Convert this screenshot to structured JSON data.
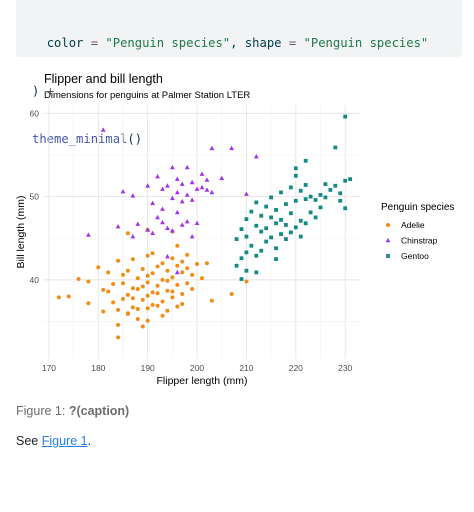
{
  "code": {
    "line1": {
      "indent": "  ",
      "a": "color",
      "b": " = ",
      "c": "\"Penguin species\"",
      "d": ", ",
      "e": "shape",
      "f": " = ",
      "g": "\"Penguin species\""
    },
    "line2": {
      "a": ") ",
      "b": "+"
    },
    "line3": {
      "fn": "theme_minimal",
      "rest": "()"
    }
  },
  "chart_data": {
    "type": "scatter",
    "title": "Flipper and bill length",
    "subtitle": "Dimensions for penguins at Palmer Station LTER",
    "xlabel": "Flipper length (mm)",
    "ylabel": "Bill length (mm)",
    "xlim": [
      169,
      233
    ],
    "ylim": [
      30.5,
      61
    ],
    "x_ticks": [
      170,
      180,
      190,
      200,
      210,
      220,
      230
    ],
    "y_ticks": [
      40,
      50,
      60
    ],
    "grid": true,
    "legend_title": "Penguin species",
    "legend_position": "right",
    "series": [
      {
        "name": "Adelie",
        "color": "#f28e17",
        "shape": "circle",
        "points": [
          [
            172,
            37.9
          ],
          [
            174,
            38
          ],
          [
            176,
            40.1
          ],
          [
            178,
            39.8
          ],
          [
            178,
            37.2
          ],
          [
            180,
            41.5
          ],
          [
            181,
            38.8
          ],
          [
            181,
            36.2
          ],
          [
            182,
            38.6
          ],
          [
            182,
            40.9
          ],
          [
            183,
            37.3
          ],
          [
            183,
            39.5
          ],
          [
            184,
            36.4
          ],
          [
            184,
            42.3
          ],
          [
            184,
            34.6
          ],
          [
            185,
            39.6
          ],
          [
            185,
            37.7
          ],
          [
            185,
            40.6
          ],
          [
            186,
            36
          ],
          [
            186,
            38.2
          ],
          [
            186,
            41.1
          ],
          [
            186,
            35.9
          ],
          [
            187,
            39
          ],
          [
            187,
            36.7
          ],
          [
            187,
            37.8
          ],
          [
            187,
            42.5
          ],
          [
            188,
            38.9
          ],
          [
            188,
            40.2
          ],
          [
            188,
            35.3
          ],
          [
            188,
            36.5
          ],
          [
            189,
            39.2
          ],
          [
            189,
            41.3
          ],
          [
            189,
            37.6
          ],
          [
            189,
            34.4
          ],
          [
            190,
            38.1
          ],
          [
            190,
            40.5
          ],
          [
            190,
            36.6
          ],
          [
            190,
            39.7
          ],
          [
            190,
            42.9
          ],
          [
            190,
            35.1
          ],
          [
            191,
            38.5
          ],
          [
            191,
            40.8
          ],
          [
            191,
            37
          ],
          [
            191,
            43.2
          ],
          [
            192,
            39.3
          ],
          [
            192,
            36.9
          ],
          [
            192,
            41.6
          ],
          [
            192,
            38.4
          ],
          [
            193,
            40
          ],
          [
            193,
            37.4
          ],
          [
            193,
            42
          ],
          [
            193,
            35.7
          ],
          [
            194,
            38.7
          ],
          [
            194,
            41.1
          ],
          [
            194,
            36.3
          ],
          [
            194,
            39.9
          ],
          [
            195,
            40.3
          ],
          [
            195,
            37.9
          ],
          [
            195,
            42.6
          ],
          [
            195,
            38.6
          ],
          [
            196,
            39.4
          ],
          [
            196,
            41.7
          ],
          [
            196,
            36.8
          ],
          [
            196,
            44.1
          ],
          [
            197,
            40.9
          ],
          [
            197,
            38.3
          ],
          [
            197,
            42.2
          ],
          [
            197,
            37.1
          ],
          [
            198,
            39.6
          ],
          [
            198,
            41.4
          ],
          [
            198,
            43
          ],
          [
            199,
            40.6
          ],
          [
            199,
            38.9
          ],
          [
            200,
            41.9
          ],
          [
            201,
            40.2
          ],
          [
            202,
            42
          ],
          [
            203,
            37.5
          ],
          [
            207,
            38.3
          ],
          [
            210,
            39.8
          ],
          [
            184,
            33.1
          ],
          [
            186,
            45.6
          ],
          [
            190,
            46
          ],
          [
            195,
            45.8
          ]
        ]
      },
      {
        "name": "Chinstrap",
        "color": "#a434e9",
        "shape": "triangle",
        "points": [
          [
            181,
            58
          ],
          [
            184,
            46.4
          ],
          [
            187,
            45.2
          ],
          [
            187,
            50.1
          ],
          [
            188,
            46.7
          ],
          [
            190,
            51.3
          ],
          [
            191,
            45.6
          ],
          [
            191,
            49.2
          ],
          [
            192,
            47.5
          ],
          [
            192,
            52.4
          ],
          [
            193,
            46.9
          ],
          [
            193,
            50.9
          ],
          [
            193,
            48.5
          ],
          [
            194,
            46.2
          ],
          [
            194,
            51.3
          ],
          [
            195,
            49.8
          ],
          [
            195,
            53.5
          ],
          [
            195,
            45.9
          ],
          [
            196,
            50.5
          ],
          [
            196,
            48.1
          ],
          [
            196,
            52.1
          ],
          [
            197,
            46.6
          ],
          [
            197,
            51.5
          ],
          [
            197,
            49.4
          ],
          [
            198,
            50.2
          ],
          [
            198,
            53.5
          ],
          [
            198,
            47
          ],
          [
            199,
            51.7
          ],
          [
            199,
            49.6
          ],
          [
            200,
            50.9
          ],
          [
            200,
            46.8
          ],
          [
            201,
            51.1
          ],
          [
            201,
            52.7
          ],
          [
            202,
            50.8
          ],
          [
            202,
            52
          ],
          [
            203,
            50.5
          ],
          [
            203,
            55.8
          ],
          [
            205,
            52.2
          ],
          [
            207,
            55.8
          ],
          [
            185,
            50.6
          ],
          [
            190,
            46
          ],
          [
            194,
            42.8
          ],
          [
            178,
            45.4
          ],
          [
            210,
            50.3
          ],
          [
            212,
            54.8
          ],
          [
            196,
            40.9
          ],
          [
            199,
            45.2
          ]
        ]
      },
      {
        "name": "Gentoo",
        "color": "#138a85",
        "shape": "square",
        "points": [
          [
            208,
            41.7
          ],
          [
            208,
            44.9
          ],
          [
            209,
            42.6
          ],
          [
            209,
            46.1
          ],
          [
            210,
            43.3
          ],
          [
            210,
            47.3
          ],
          [
            210,
            45.2
          ],
          [
            211,
            48.2
          ],
          [
            211,
            44.1
          ],
          [
            212,
            46.5
          ],
          [
            212,
            49.3
          ],
          [
            212,
            42.9
          ],
          [
            213,
            45.8
          ],
          [
            213,
            47.7
          ],
          [
            213,
            43.5
          ],
          [
            214,
            46.2
          ],
          [
            214,
            48.8
          ],
          [
            214,
            44.6
          ],
          [
            215,
            45.1
          ],
          [
            215,
            47.5
          ],
          [
            215,
            49.9
          ],
          [
            216,
            43.8
          ],
          [
            216,
            46.8
          ],
          [
            216,
            48.4
          ],
          [
            217,
            45.5
          ],
          [
            217,
            47.2
          ],
          [
            217,
            50.5
          ],
          [
            218,
            44.9
          ],
          [
            218,
            46.6
          ],
          [
            218,
            49.1
          ],
          [
            219,
            45.7
          ],
          [
            219,
            48
          ],
          [
            219,
            51.1
          ],
          [
            220,
            46.3
          ],
          [
            220,
            49.5
          ],
          [
            220,
            52.5
          ],
          [
            221,
            47.1
          ],
          [
            221,
            45.2
          ],
          [
            221,
            50.7
          ],
          [
            222,
            46.8
          ],
          [
            222,
            49.7
          ],
          [
            222,
            51.4
          ],
          [
            223,
            48.1
          ],
          [
            223,
            50
          ],
          [
            224,
            47.5
          ],
          [
            224,
            49.6
          ],
          [
            225,
            50.2
          ],
          [
            225,
            48.7
          ],
          [
            226,
            49.9
          ],
          [
            226,
            51.5
          ],
          [
            227,
            50.8
          ],
          [
            228,
            51.3
          ],
          [
            228,
            55.9
          ],
          [
            229,
            50.4
          ],
          [
            229,
            49.5
          ],
          [
            230,
            51.9
          ],
          [
            230,
            59.6
          ],
          [
            230,
            48.6
          ],
          [
            231,
            52.1
          ],
          [
            212,
            40.9
          ],
          [
            216,
            42.5
          ],
          [
            220,
            53.4
          ],
          [
            222,
            54.3
          ],
          [
            210,
            41.1
          ],
          [
            209,
            40.1
          ]
        ]
      }
    ]
  },
  "caption": {
    "prefix": "Figure 1: ",
    "label": "?(caption)"
  },
  "crossref": {
    "see": "See ",
    "link": "Figure 1",
    "suffix": "."
  }
}
